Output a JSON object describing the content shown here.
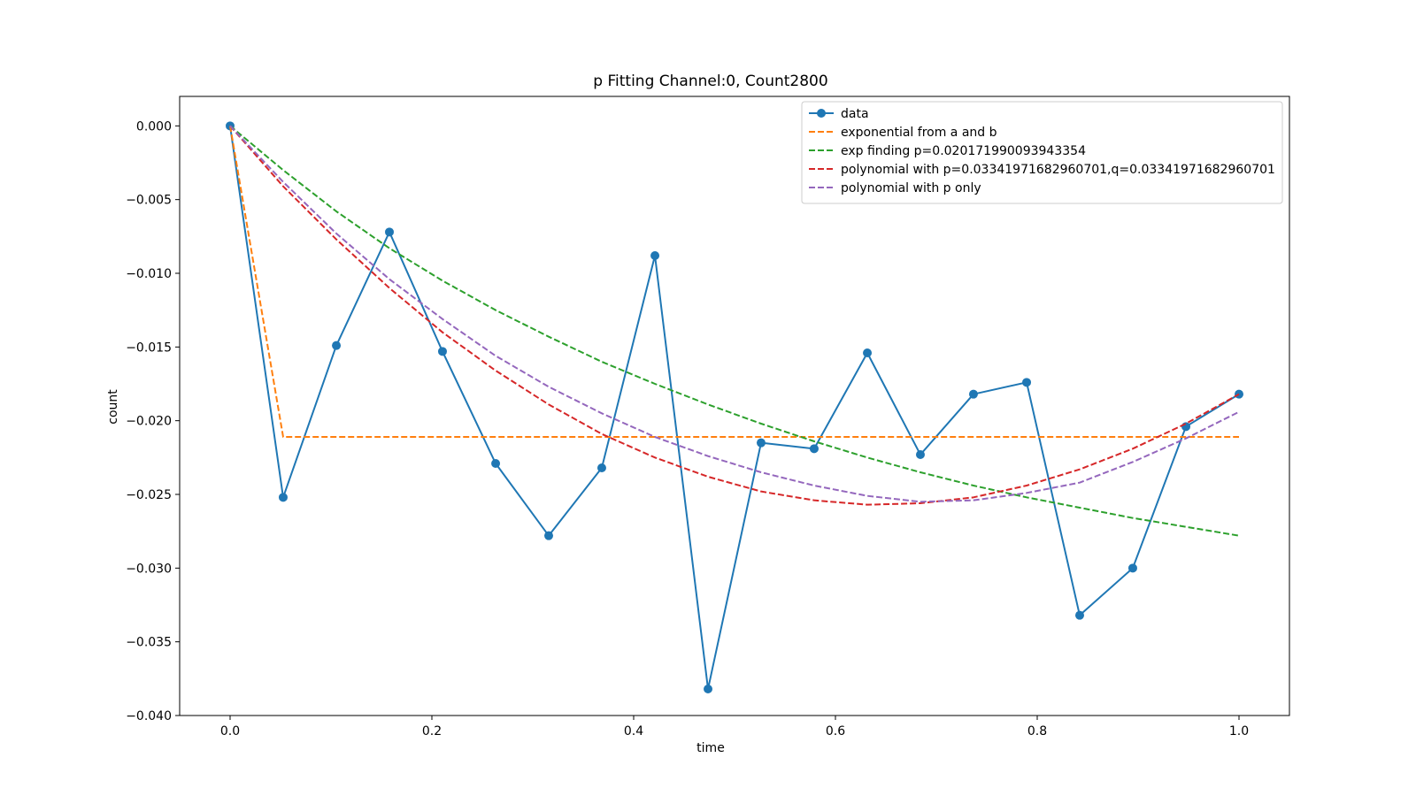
{
  "chart_data": {
    "type": "line",
    "title": "p Fitting Channel:0, Count2800",
    "xlabel": "time",
    "ylabel": "count",
    "xlim": [
      -0.05,
      1.05
    ],
    "ylim": [
      -0.04,
      0.002
    ],
    "xticks": [
      0.0,
      0.2,
      0.4,
      0.6,
      0.8,
      1.0
    ],
    "xtick_labels": [
      "0.0",
      "0.2",
      "0.4",
      "0.6",
      "0.8",
      "1.0"
    ],
    "yticks": [
      0.0,
      -0.005,
      -0.01,
      -0.015,
      -0.02,
      -0.025,
      -0.03,
      -0.035,
      -0.04
    ],
    "ytick_labels": [
      "0.000",
      "−0.005",
      "−0.010",
      "−0.015",
      "−0.020",
      "−0.025",
      "−0.030",
      "−0.035",
      "−0.040"
    ],
    "grid": false,
    "legend_position": "top-right",
    "series": [
      {
        "name": "data",
        "color": "#1f77b4",
        "style": "solid",
        "marker": "circle",
        "x": [
          0.0,
          0.0526,
          0.1053,
          0.1579,
          0.2105,
          0.2632,
          0.3158,
          0.3684,
          0.4211,
          0.4737,
          0.5263,
          0.5789,
          0.6316,
          0.6842,
          0.7368,
          0.7895,
          0.8421,
          0.8947,
          0.9474,
          1.0
        ],
        "y": [
          0.0,
          -0.0252,
          -0.0149,
          -0.0072,
          -0.0153,
          -0.0229,
          -0.0278,
          -0.0232,
          -0.0088,
          -0.0382,
          -0.0215,
          -0.0219,
          -0.0154,
          -0.0223,
          -0.0182,
          -0.0174,
          -0.0332,
          -0.03,
          -0.0204,
          -0.0182
        ]
      },
      {
        "name": "exponential from a and b",
        "color": "#ff7f0e",
        "style": "dashed",
        "x": [
          0.0,
          0.0526,
          0.1053,
          0.1579,
          0.2105,
          0.2632,
          0.3158,
          0.3684,
          0.4211,
          0.4737,
          0.5263,
          0.5789,
          0.6316,
          0.6842,
          0.7368,
          0.7895,
          0.8421,
          0.8947,
          0.9474,
          1.0
        ],
        "y": [
          0.0,
          -0.0211,
          -0.0211,
          -0.0211,
          -0.0211,
          -0.0211,
          -0.0211,
          -0.0211,
          -0.0211,
          -0.0211,
          -0.0211,
          -0.0211,
          -0.0211,
          -0.0211,
          -0.0211,
          -0.0211,
          -0.0211,
          -0.0211,
          -0.0211,
          -0.0211
        ]
      },
      {
        "name": "exp finding p=0.020171990093943354",
        "color": "#2ca02c",
        "style": "dashed",
        "x": [
          0.0,
          0.0526,
          0.1053,
          0.1579,
          0.2105,
          0.2632,
          0.3158,
          0.3684,
          0.4211,
          0.4737,
          0.5263,
          0.5789,
          0.6316,
          0.6842,
          0.7368,
          0.7895,
          0.8421,
          0.8947,
          0.9474,
          1.0
        ],
        "y": [
          0.0,
          -0.003,
          -0.0058,
          -0.0083,
          -0.0105,
          -0.0125,
          -0.0143,
          -0.016,
          -0.0175,
          -0.0189,
          -0.0202,
          -0.0214,
          -0.0225,
          -0.0235,
          -0.0244,
          -0.0252,
          -0.0259,
          -0.0266,
          -0.0272,
          -0.0278
        ]
      },
      {
        "name": "polynomial with p=0.03341971682960701,q=0.03341971682960701",
        "color": "#d62728",
        "style": "dashed",
        "x": [
          0.0,
          0.0526,
          0.1053,
          0.1579,
          0.2105,
          0.2632,
          0.3158,
          0.3684,
          0.4211,
          0.4737,
          0.5263,
          0.5789,
          0.6316,
          0.6842,
          0.7368,
          0.7895,
          0.8421,
          0.8947,
          0.9474,
          1.0
        ],
        "y": [
          0.0,
          -0.0041,
          -0.0077,
          -0.011,
          -0.014,
          -0.0166,
          -0.0189,
          -0.0209,
          -0.0225,
          -0.0238,
          -0.0248,
          -0.0254,
          -0.0257,
          -0.0256,
          -0.0252,
          -0.0244,
          -0.0233,
          -0.0219,
          -0.0202,
          -0.0182
        ]
      },
      {
        "name": "polynomial with p only",
        "color": "#9467bd",
        "style": "dashed",
        "x": [
          0.0,
          0.0526,
          0.1053,
          0.1579,
          0.2105,
          0.2632,
          0.3158,
          0.3684,
          0.4211,
          0.4737,
          0.5263,
          0.5789,
          0.6316,
          0.6842,
          0.7368,
          0.7895,
          0.8421,
          0.8947,
          0.9474,
          1.0
        ],
        "y": [
          0.0,
          -0.0038,
          -0.0073,
          -0.0104,
          -0.0131,
          -0.0156,
          -0.0177,
          -0.0195,
          -0.0211,
          -0.0224,
          -0.0235,
          -0.0244,
          -0.0251,
          -0.0255,
          -0.0254,
          -0.0249,
          -0.0242,
          -0.0228,
          -0.0212,
          -0.0194
        ]
      }
    ]
  }
}
